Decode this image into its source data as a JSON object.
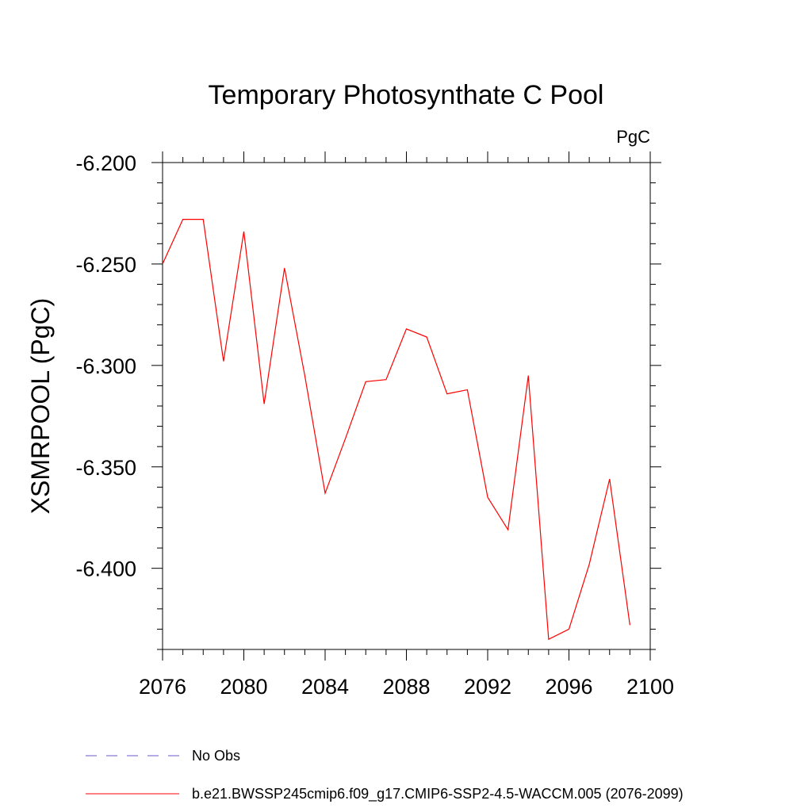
{
  "chart_data": {
    "type": "line",
    "title": "Temporary Photosynthate C Pool",
    "units_label": "PgC",
    "ylabel": "XSMRPOOL  (PgC)",
    "xlabel": "",
    "xlim": [
      2076,
      2100
    ],
    "ylim": [
      -6.44,
      -6.2
    ],
    "x_ticks": [
      2076,
      2080,
      2084,
      2088,
      2092,
      2096,
      2100
    ],
    "y_ticks": [
      -6.2,
      -6.25,
      -6.3,
      -6.35,
      -6.4
    ],
    "y_tick_labels": [
      "-6.200",
      "-6.250",
      "-6.300",
      "-6.350",
      "-6.400"
    ],
    "x_tick_labels": [
      "2076",
      "2080",
      "2084",
      "2088",
      "2092",
      "2096",
      "2100"
    ],
    "grid": false,
    "legend_position": "bottom",
    "series": [
      {
        "name": "No Obs",
        "color": "#6a5acd",
        "dash": true,
        "x": [],
        "values": []
      },
      {
        "name": "b.e21.BWSSP245cmip6.f09_g17.CMIP6-SSP2-4.5-WACCM.005 (2076-2099)",
        "color": "#ff0000",
        "dash": false,
        "x": [
          2076,
          2077,
          2078,
          2079,
          2080,
          2081,
          2082,
          2083,
          2084,
          2085,
          2086,
          2087,
          2088,
          2089,
          2090,
          2091,
          2092,
          2093,
          2094,
          2095,
          2096,
          2097,
          2098,
          2099
        ],
        "values": [
          -6.25,
          -6.228,
          -6.228,
          -6.298,
          -6.234,
          -6.319,
          -6.252,
          -6.305,
          -6.363,
          -6.336,
          -6.308,
          -6.307,
          -6.282,
          -6.286,
          -6.314,
          -6.312,
          -6.365,
          -6.381,
          -6.305,
          -6.435,
          -6.43,
          -6.398,
          -6.356,
          -6.428
        ]
      }
    ]
  }
}
